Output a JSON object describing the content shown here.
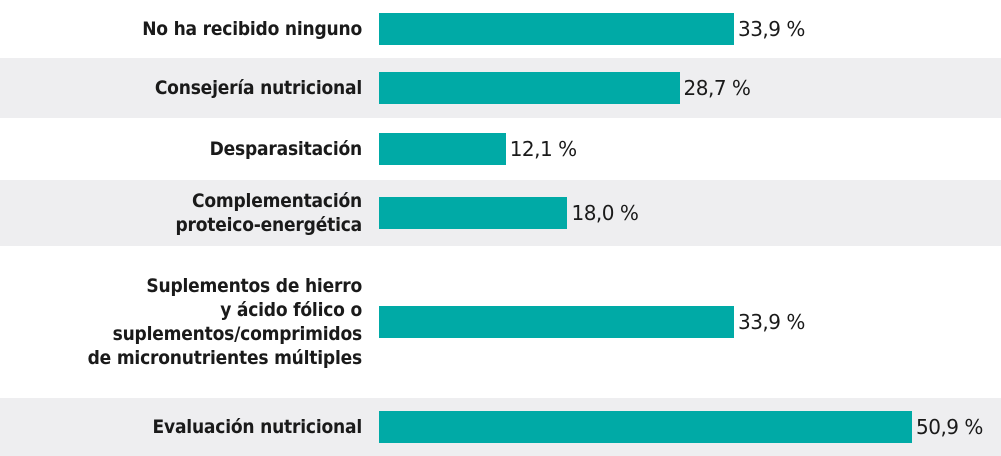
{
  "chart_data": {
    "type": "bar",
    "orientation": "horizontal",
    "categories": [
      "No ha recibido ninguno",
      "Consejería nutricional",
      "Desparasitación",
      "Complementación\nproteico-energética",
      "Suplementos de hierro\ny ácido fólico o\nsuplementos/comprimidos\nde micronutrientes múltiples",
      "Evaluación nutricional"
    ],
    "values": [
      33.9,
      28.7,
      12.1,
      18.0,
      33.9,
      50.9
    ],
    "value_labels": [
      "33,9 %",
      "28,7 %",
      "12,1 %",
      "18,0 %",
      "33,9 %",
      "50,9 %"
    ],
    "color": "#00aaa6"
  }
}
